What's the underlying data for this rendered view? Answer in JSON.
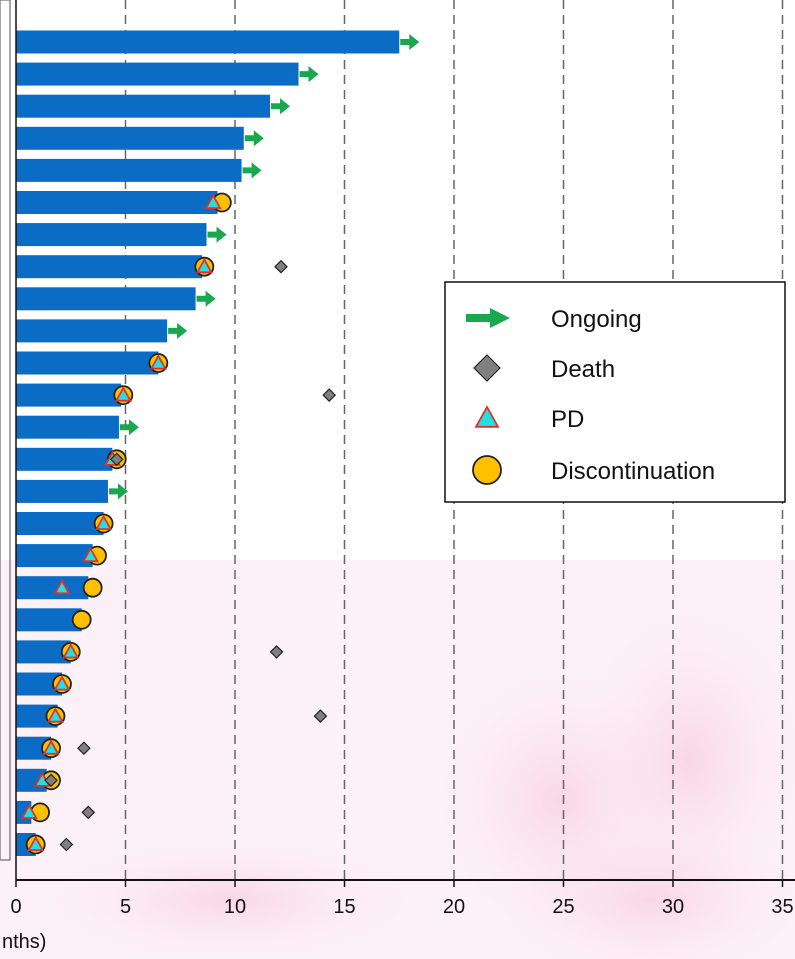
{
  "chart_data": {
    "type": "bar",
    "orientation": "horizontal",
    "xlabel_visible": "nths)",
    "xlim": [
      0,
      35
    ],
    "xticks": [
      0,
      5,
      10,
      15,
      20,
      25,
      30,
      35
    ],
    "grid": "vertical dashed",
    "legend_placement": "right",
    "bar_color": "#0a6cc4",
    "legend": [
      {
        "key": "ongoing",
        "label": "Ongoing",
        "color": "#1aa84f",
        "icon": "arrow-right-icon"
      },
      {
        "key": "death",
        "label": "Death",
        "color": "#808080",
        "icon": "diamond-icon"
      },
      {
        "key": "pd",
        "label": "PD",
        "color": "#22e0e0",
        "icon": "triangle-icon"
      },
      {
        "key": "disc",
        "label": "Discontinuation",
        "color": "#ffc000",
        "icon": "circle-icon"
      }
    ],
    "patients": [
      {
        "duration": 17.5,
        "ongoing": true
      },
      {
        "duration": 12.9,
        "ongoing": true
      },
      {
        "duration": 11.6,
        "ongoing": true
      },
      {
        "duration": 10.4,
        "ongoing": true
      },
      {
        "duration": 10.3,
        "ongoing": true
      },
      {
        "duration": 9.2,
        "pd": 9.0,
        "disc": 9.4
      },
      {
        "duration": 8.7,
        "ongoing": true
      },
      {
        "duration": 8.5,
        "pd": 8.6,
        "disc": 8.6,
        "death": 12.1
      },
      {
        "duration": 8.2,
        "ongoing": true
      },
      {
        "duration": 6.9,
        "ongoing": true
      },
      {
        "duration": 6.5,
        "pd": 6.5,
        "disc": 6.5
      },
      {
        "duration": 4.8,
        "pd": 4.9,
        "disc": 4.9,
        "death": 14.3
      },
      {
        "duration": 4.7,
        "ongoing": true
      },
      {
        "duration": 4.4,
        "pd": 4.4,
        "disc": 4.6,
        "death": 4.6
      },
      {
        "duration": 4.2,
        "ongoing": true
      },
      {
        "duration": 4.0,
        "pd": 4.0,
        "disc": 4.0
      },
      {
        "duration": 3.5,
        "pd": 3.4,
        "disc": 3.7
      },
      {
        "duration": 3.3,
        "pd": 2.1,
        "disc": 3.5
      },
      {
        "duration": 3.0,
        "disc": 3.0
      },
      {
        "duration": 2.5,
        "pd": 2.5,
        "disc": 2.5,
        "death": 11.9
      },
      {
        "duration": 2.1,
        "pd": 2.1,
        "disc": 2.1
      },
      {
        "duration": 1.9,
        "pd": 1.8,
        "disc": 1.8,
        "death": 13.9
      },
      {
        "duration": 1.6,
        "pd": 1.6,
        "disc": 1.6,
        "death": 3.1
      },
      {
        "duration": 1.4,
        "pd": 1.2,
        "disc": 1.6,
        "death": 1.6
      },
      {
        "duration": 0.7,
        "pd": 0.6,
        "disc": 1.1,
        "death": 3.3
      },
      {
        "duration": 0.9,
        "pd": 0.9,
        "disc": 0.9,
        "death": 2.3
      }
    ]
  }
}
